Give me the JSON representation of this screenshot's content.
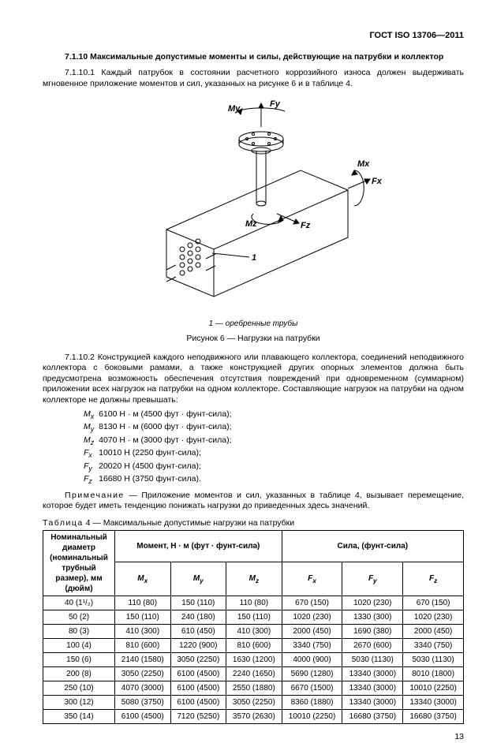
{
  "doc_id": "ГОСТ ISO 13706—2011",
  "section": {
    "num_title": "7.1.10 Максимальные допустимые моменты и силы, действующие на патрубки и коллектор",
    "p1": "7.1.10.1 Каждый патрубок в состоянии расчетного коррозийного износа должен выдерживать мгновенное приложение моментов и сил, указанных на рисунке 6 и в таблице 4."
  },
  "figure": {
    "legend_key": "1",
    "legend_sep": "—",
    "legend_text": "оребренные трубы",
    "caption": "Рисунок 6 — Нагрузки на патрубки",
    "labels": {
      "My": "My",
      "Mx": "Mx",
      "Mz": "Mz",
      "Fx": "Fx",
      "Fy": "Fy",
      "Fz": "Fz",
      "one": "1"
    }
  },
  "p2": "7.1.10.2 Конструкцией каждого неподвижного или плавающего коллектора, соединений неподвижного коллектора с боковыми рамами, а также конструкцией других опорных элементов должна быть предусмотрена возможность обеспечения отсутствия повреждений при одновременном (суммарном) приложении всех нагрузок на патрубки на одном коллекторе. Составляющие нагрузок на патрубки на одном коллекторе не должны превышать:",
  "loads": [
    {
      "sym": "M",
      "sub": "x",
      "val": "6100 Н · м (4500 фут · фунт-сила);"
    },
    {
      "sym": "M",
      "sub": "y",
      "val": "8130 Н · м (6000 фут · фунт-сила);"
    },
    {
      "sym": "M",
      "sub": "z",
      "val": "4070 Н · м (3000 фут · фунт-сила);"
    },
    {
      "sym": "F",
      "sub": "x",
      "val": "10010 Н (2250 фунт-сила);"
    },
    {
      "sym": "F",
      "sub": "y",
      "val": "20020 Н (4500 фунт-сила);"
    },
    {
      "sym": "F",
      "sub": "z",
      "val": "16680 Н (3750 фунт-сила)."
    }
  ],
  "note": {
    "label": "Примечание",
    "text": "— Приложение моментов и сил, указанных в таблице 4, вызывает перемещение, которое будет иметь тенденцию понижать нагрузки до приведенных здесь значений."
  },
  "table": {
    "title_label": "Таблица",
    "title_rest": " 4 — Максимальные допустимые нагрузки на патрубки",
    "head": {
      "col1": "Номинальный диаметр (номинальный трубный размер), мм (дюйм)",
      "moment": "Момент, Н · м (фут · фунт-сила)",
      "force": "Сила, (фунт-сила)",
      "mx": "Mx",
      "my": "My",
      "mz": "Mz",
      "fx": "Fx",
      "fy": "Fy",
      "fz": "Fz"
    },
    "rows": [
      {
        "size": "40 (1¹/₂)",
        "mx": "110 (80)",
        "my": "150 (110)",
        "mz": "110 (80)",
        "fx": "670 (150)",
        "fy": "1020 (230)",
        "fz": "670 (150)"
      },
      {
        "size": "50 (2)",
        "mx": "150 (110)",
        "my": "240 (180)",
        "mz": "150 (110)",
        "fx": "1020 (230)",
        "fy": "1330 (300)",
        "fz": "1020 (230)"
      },
      {
        "size": "80 (3)",
        "mx": "410 (300)",
        "my": "610 (450)",
        "mz": "410 (300)",
        "fx": "2000 (450)",
        "fy": "1690 (380)",
        "fz": "2000 (450)"
      },
      {
        "size": "100 (4)",
        "mx": "810 (600)",
        "my": "1220 (900)",
        "mz": "810 (600)",
        "fx": "3340 (750)",
        "fy": "2670 (600)",
        "fz": "3340 (750)"
      },
      {
        "size": "150 (6)",
        "mx": "2140 (1580)",
        "my": "3050 (2250)",
        "mz": "1630 (1200)",
        "fx": "4000 (900)",
        "fy": "5030 (1130)",
        "fz": "5030 (1130)"
      },
      {
        "size": "200 (8)",
        "mx": "3050 (2250)",
        "my": "6100 (4500)",
        "mz": "2240 (1650)",
        "fx": "5690 (1280)",
        "fy": "13340 (3000)",
        "fz": "8010 (1800)"
      },
      {
        "size": "250 (10)",
        "mx": "4070 (3000)",
        "my": "6100 (4500)",
        "mz": "2550 (1880)",
        "fx": "6670 (1500)",
        "fy": "13340 (3000)",
        "fz": "10010 (2250)"
      },
      {
        "size": "300 (12)",
        "mx": "5080 (3750)",
        "my": "6100 (4500)",
        "mz": "3050 (2250)",
        "fx": "8360 (1880)",
        "fy": "13340 (3000)",
        "fz": "13340 (3000)"
      },
      {
        "size": "350 (14)",
        "mx": "6100 (4500)",
        "my": "7120 (5250)",
        "mz": "3570 (2630)",
        "fx": "10010 (2250)",
        "fy": "16680 (3750)",
        "fz": "16680 (3750)"
      }
    ]
  },
  "page_no": "13"
}
